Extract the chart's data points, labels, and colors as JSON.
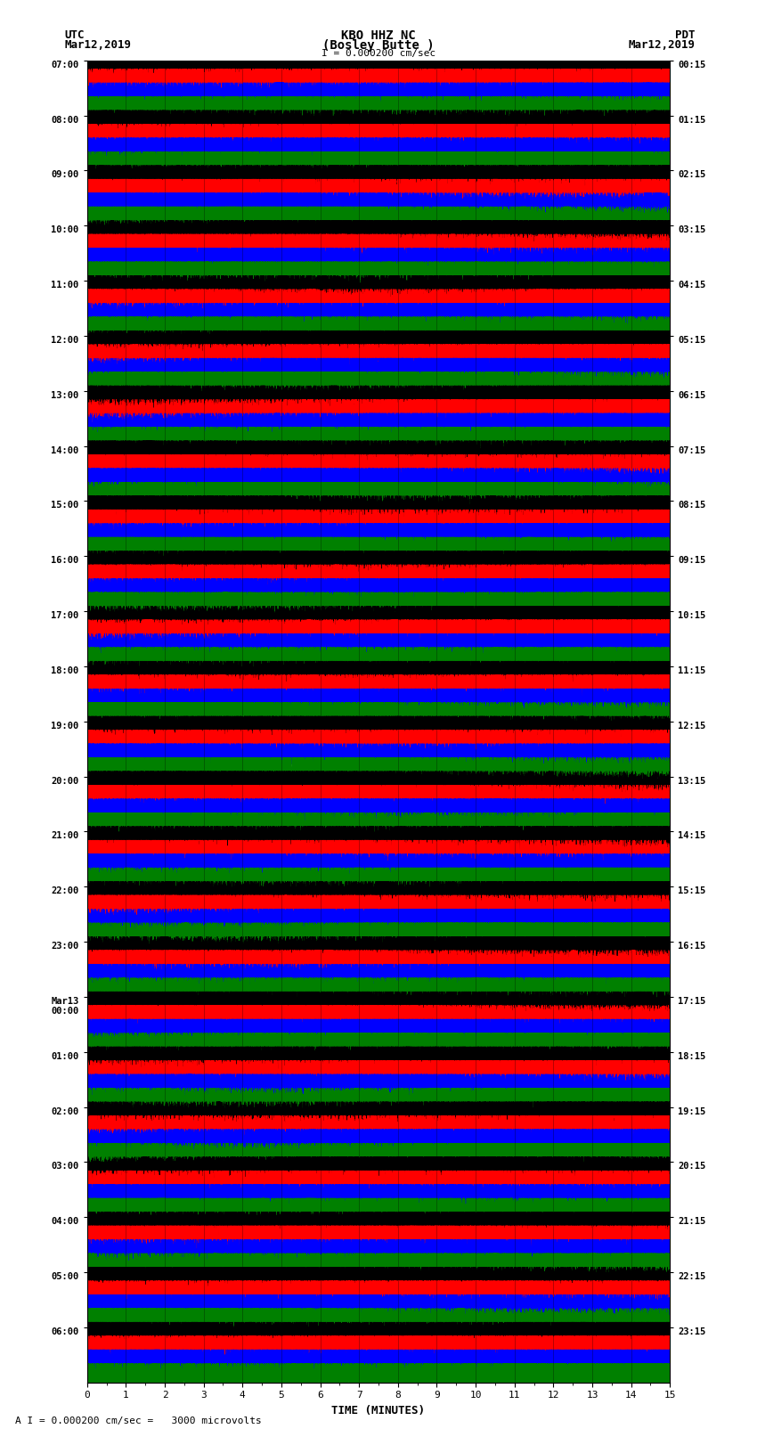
{
  "title_line1": "KBO HHZ NC",
  "title_line2": "(Bosley Butte )",
  "scale_label": "I = 0.000200 cm/sec",
  "left_header": "UTC",
  "left_subheader": "Mar12,2019",
  "right_header": "PDT",
  "right_subheader": "Mar12,2019",
  "bottom_label": "TIME (MINUTES)",
  "scale_note": "A I = 0.000200 cm/sec =   3000 microvolts",
  "utc_times": [
    "07:00",
    "08:00",
    "09:00",
    "10:00",
    "11:00",
    "12:00",
    "13:00",
    "14:00",
    "15:00",
    "16:00",
    "17:00",
    "18:00",
    "19:00",
    "20:00",
    "21:00",
    "22:00",
    "23:00",
    "Mar13\n00:00",
    "01:00",
    "02:00",
    "03:00",
    "04:00",
    "05:00",
    "06:00"
  ],
  "pdt_times": [
    "00:15",
    "01:15",
    "02:15",
    "03:15",
    "04:15",
    "05:15",
    "06:15",
    "07:15",
    "08:15",
    "09:15",
    "10:15",
    "11:15",
    "12:15",
    "13:15",
    "14:15",
    "15:15",
    "16:15",
    "17:15",
    "18:15",
    "19:15",
    "20:15",
    "21:15",
    "22:15",
    "23:15"
  ],
  "num_traces": 24,
  "minutes_per_trace": 15,
  "colors": [
    "black",
    "red",
    "blue",
    "green"
  ],
  "bg_color": "white",
  "dpi": 100,
  "fig_width": 8.5,
  "fig_height": 16.13
}
